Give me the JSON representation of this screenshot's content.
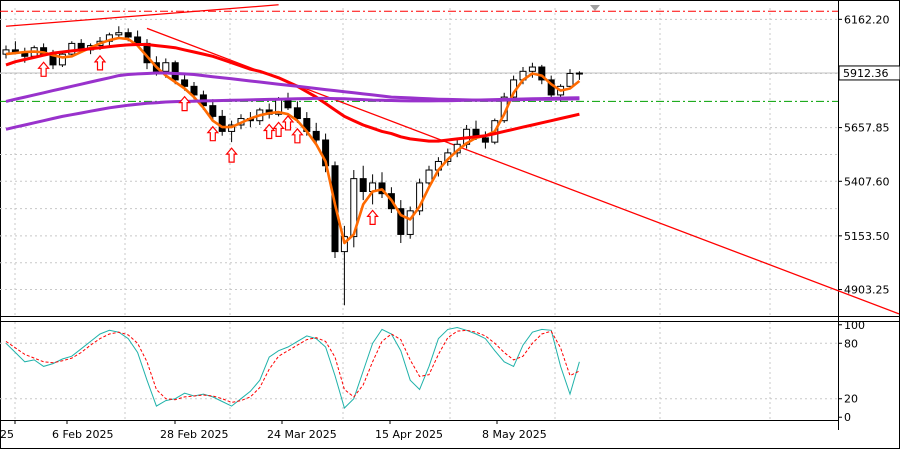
{
  "chart_data": [
    {
      "type": "candlestick",
      "panel": "price",
      "y_axis_ticks": [
        6162.2,
        5657.85,
        5407.6,
        5153.5,
        4903.25
      ],
      "ylim": [
        4780,
        6215
      ],
      "current_price_label": "5912.36",
      "horizontal_levels": [
        {
          "value": 6200,
          "style": "dash-dot",
          "color": "#ff0000"
        },
        {
          "value": 5912.36,
          "style": "solid",
          "color": "#c0c0c0"
        },
        {
          "value": 5780,
          "style": "dash-dot",
          "color": "#00a000"
        }
      ],
      "x_tick_labels": [
        "25",
        "6 Feb 2025",
        "28 Feb 2025",
        "24 Mar 2025",
        "15 Apr 2025",
        "8 May 2025"
      ],
      "candles": [
        [
          6000,
          6040,
          5980,
          6020
        ],
        [
          6020,
          6060,
          6000,
          6010
        ],
        [
          6010,
          6030,
          5960,
          5990
        ],
        [
          5990,
          6040,
          5980,
          6030
        ],
        [
          6030,
          6050,
          5990,
          6000
        ],
        [
          6000,
          6020,
          5930,
          5950
        ],
        [
          5950,
          6010,
          5940,
          6000
        ],
        [
          6000,
          6060,
          5990,
          6050
        ],
        [
          6050,
          6070,
          6010,
          6020
        ],
        [
          6020,
          6050,
          6000,
          6040
        ],
        [
          6040,
          6080,
          6020,
          6060
        ],
        [
          6060,
          6100,
          6040,
          6090
        ],
        [
          6090,
          6130,
          6070,
          6100
        ],
        [
          6100,
          6120,
          6060,
          6080
        ],
        [
          6080,
          6110,
          6040,
          6050
        ],
        [
          6050,
          6070,
          5930,
          5960
        ],
        [
          5960,
          5990,
          5900,
          5920
        ],
        [
          5920,
          5980,
          5890,
          5960
        ],
        [
          5960,
          5970,
          5860,
          5880
        ],
        [
          5880,
          5910,
          5830,
          5850
        ],
        [
          5850,
          5870,
          5790,
          5810
        ],
        [
          5810,
          5830,
          5740,
          5760
        ],
        [
          5760,
          5790,
          5690,
          5710
        ],
        [
          5710,
          5740,
          5620,
          5640
        ],
        [
          5640,
          5690,
          5590,
          5670
        ],
        [
          5670,
          5720,
          5650,
          5700
        ],
        [
          5700,
          5730,
          5660,
          5690
        ],
        [
          5690,
          5750,
          5670,
          5740
        ],
        [
          5740,
          5770,
          5700,
          5720
        ],
        [
          5720,
          5800,
          5710,
          5790
        ],
        [
          5790,
          5820,
          5740,
          5750
        ],
        [
          5750,
          5780,
          5680,
          5700
        ],
        [
          5700,
          5730,
          5620,
          5640
        ],
        [
          5640,
          5680,
          5580,
          5600
        ],
        [
          5600,
          5630,
          5450,
          5480
        ],
        [
          5480,
          5500,
          5050,
          5080
        ],
        [
          5080,
          5200,
          4830,
          5150
        ],
        [
          5150,
          5460,
          5100,
          5420
        ],
        [
          5420,
          5480,
          5320,
          5360
        ],
        [
          5360,
          5440,
          5300,
          5400
        ],
        [
          5400,
          5450,
          5330,
          5350
        ],
        [
          5350,
          5380,
          5260,
          5280
        ],
        [
          5280,
          5320,
          5120,
          5160
        ],
        [
          5160,
          5290,
          5140,
          5270
        ],
        [
          5270,
          5420,
          5250,
          5400
        ],
        [
          5400,
          5480,
          5380,
          5460
        ],
        [
          5460,
          5520,
          5430,
          5500
        ],
        [
          5500,
          5560,
          5480,
          5540
        ],
        [
          5540,
          5600,
          5520,
          5580
        ],
        [
          5580,
          5670,
          5560,
          5650
        ],
        [
          5650,
          5690,
          5600,
          5610
        ],
        [
          5610,
          5640,
          5560,
          5590
        ],
        [
          5590,
          5700,
          5580,
          5690
        ],
        [
          5690,
          5820,
          5680,
          5800
        ],
        [
          5800,
          5900,
          5790,
          5880
        ],
        [
          5880,
          5940,
          5860,
          5920
        ],
        [
          5920,
          5960,
          5890,
          5940
        ],
        [
          5940,
          5950,
          5860,
          5880
        ],
        [
          5880,
          5900,
          5790,
          5810
        ],
        [
          5810,
          5860,
          5780,
          5850
        ],
        [
          5850,
          5930,
          5840,
          5910
        ],
        [
          5910,
          5920,
          5880,
          5912
        ]
      ],
      "series": [
        {
          "name": "",
          "color": "#ff6a00",
          "values": [
            6000,
            6005,
            6010,
            6012,
            6008,
            5995,
            5985,
            5990,
            6010,
            6030,
            6050,
            6065,
            6075,
            6070,
            6040,
            5990,
            5940,
            5900,
            5870,
            5840,
            5800,
            5750,
            5690,
            5660,
            5660,
            5680,
            5700,
            5715,
            5725,
            5730,
            5720,
            5690,
            5640,
            5580,
            5500,
            5300,
            5120,
            5160,
            5300,
            5360,
            5370,
            5320,
            5250,
            5230,
            5290,
            5380,
            5460,
            5510,
            5550,
            5585,
            5610,
            5620,
            5640,
            5720,
            5820,
            5880,
            5910,
            5900,
            5860,
            5830,
            5840,
            5875
          ]
        },
        {
          "name": "",
          "color": "#ff0000",
          "values": [
            5950,
            5965,
            5975,
            5985,
            5995,
            6005,
            6010,
            6015,
            6020,
            6025,
            6030,
            6035,
            6040,
            6043,
            6045,
            6045,
            6040,
            6035,
            6030,
            6020,
            6010,
            6000,
            5990,
            5975,
            5960,
            5945,
            5930,
            5920,
            5905,
            5890,
            5870,
            5850,
            5825,
            5800,
            5770,
            5740,
            5710,
            5690,
            5670,
            5655,
            5640,
            5630,
            5615,
            5605,
            5600,
            5595,
            5595,
            5600,
            5605,
            5610,
            5615,
            5620,
            5630,
            5640,
            5650,
            5660,
            5670,
            5680,
            5690,
            5700,
            5710,
            5720
          ]
        },
        {
          "name": "",
          "color": "#9932cc",
          "values": [
            5780,
            5790,
            5800,
            5810,
            5820,
            5830,
            5840,
            5850,
            5860,
            5870,
            5880,
            5890,
            5900,
            5905,
            5908,
            5910,
            5912,
            5912,
            5910,
            5908,
            5905,
            5900,
            5895,
            5890,
            5885,
            5880,
            5875,
            5870,
            5865,
            5860,
            5855,
            5850,
            5845,
            5840,
            5835,
            5830,
            5825,
            5820,
            5815,
            5810,
            5805,
            5800,
            5798,
            5796,
            5794,
            5792,
            5790,
            5789,
            5788,
            5787,
            5786,
            5785,
            5785,
            5786,
            5787,
            5788,
            5789,
            5790,
            5790,
            5791,
            5791,
            5792
          ]
        },
        {
          "name": "",
          "color": "#9932cc",
          "values": [
            5650,
            5660,
            5670,
            5680,
            5690,
            5700,
            5710,
            5718,
            5726,
            5734,
            5742,
            5750,
            5756,
            5762,
            5767,
            5771,
            5774,
            5777,
            5779,
            5780,
            5781,
            5782,
            5783,
            5784,
            5785,
            5786,
            5787,
            5788,
            5789,
            5790,
            5791,
            5792,
            5793,
            5794,
            5794,
            5793,
            5792,
            5790,
            5788,
            5786,
            5785,
            5784,
            5783,
            5782,
            5782,
            5782,
            5783,
            5783,
            5784,
            5785,
            5786,
            5787,
            5788,
            5789,
            5790,
            5791,
            5792,
            5793,
            5794,
            5795,
            5796,
            5797
          ]
        }
      ],
      "trendlines": [
        {
          "from": [
            0,
            6130
          ],
          "to": [
            29,
            6230
          ],
          "color": "#ff0000"
        },
        {
          "from": [
            15,
            6120
          ],
          "to": [
            95,
            4790
          ],
          "color": "#ff0000"
        }
      ],
      "arrows": [
        4,
        10,
        19,
        22,
        24,
        28,
        29,
        30,
        31,
        39,
        83
      ]
    },
    {
      "type": "line",
      "panel": "oscillator",
      "y_axis_ticks": [
        100,
        80,
        20,
        0
      ],
      "ylim": [
        -3,
        103
      ],
      "levels": [
        80,
        20
      ],
      "series": [
        {
          "name": "",
          "color": "#20b2aa",
          "style": "solid",
          "values": [
            80,
            70,
            60,
            62,
            55,
            58,
            63,
            66,
            74,
            82,
            90,
            94,
            92,
            85,
            70,
            40,
            12,
            18,
            20,
            26,
            23,
            25,
            22,
            17,
            12,
            20,
            28,
            40,
            65,
            72,
            76,
            82,
            88,
            85,
            76,
            45,
            10,
            20,
            50,
            80,
            95,
            90,
            72,
            40,
            30,
            55,
            85,
            95,
            97,
            94,
            90,
            85,
            72,
            60,
            55,
            78,
            92,
            95,
            94,
            55,
            25,
            60
          ]
        },
        {
          "name": "",
          "color": "#ff0000",
          "style": "dashed",
          "values": [
            82,
            75,
            68,
            64,
            60,
            59,
            61,
            64,
            70,
            78,
            85,
            90,
            92,
            89,
            80,
            60,
            30,
            20,
            19,
            22,
            23,
            24,
            23,
            20,
            16,
            18,
            22,
            32,
            52,
            66,
            72,
            78,
            84,
            86,
            82,
            65,
            30,
            22,
            35,
            60,
            82,
            90,
            84,
            62,
            44,
            46,
            68,
            86,
            93,
            94,
            92,
            88,
            80,
            70,
            62,
            66,
            80,
            90,
            93,
            75,
            45,
            50
          ]
        }
      ]
    }
  ]
}
